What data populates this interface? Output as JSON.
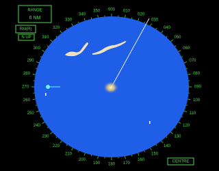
{
  "range_box": {
    "label": "RANGE",
    "value": "6 NM"
  },
  "mode": "RM(R)",
  "orientation": "N UP",
  "centre_button": "CENTRE",
  "bearing_labels": [
    "000",
    "010",
    "020",
    "030",
    "040",
    "050",
    "060",
    "070",
    "080",
    "090",
    "100",
    "110",
    "120",
    "130",
    "140",
    "150",
    "160",
    "170",
    "180",
    "190",
    "200",
    "210",
    "220",
    "230",
    "240",
    "250",
    "260",
    "270",
    "280",
    "290",
    "300",
    "310",
    "320",
    "330",
    "340",
    "350"
  ]
}
